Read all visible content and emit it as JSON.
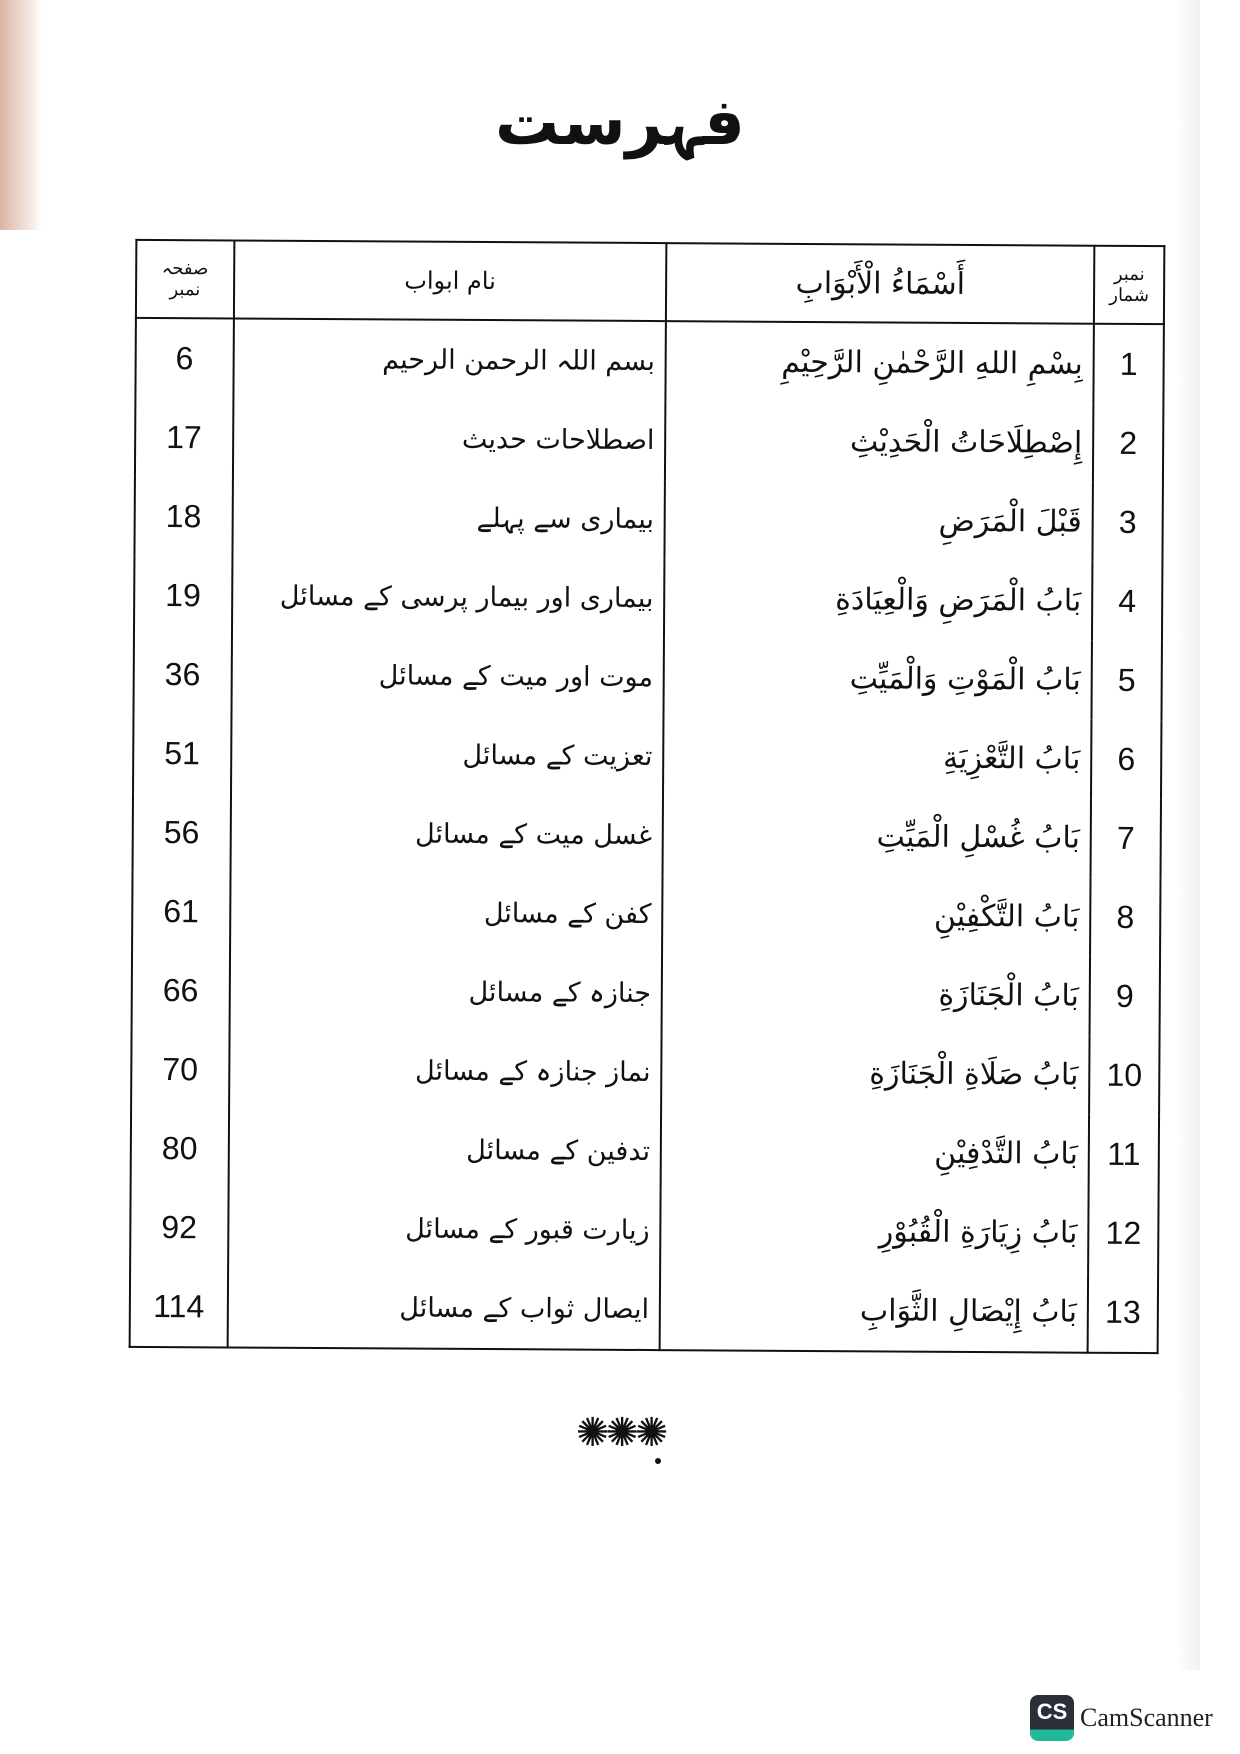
{
  "title": "فہرست",
  "table": {
    "headers": {
      "serial": "نمبر شمار",
      "arabic": "أَسْمَاءُ الْأَبْوَابِ",
      "urdu": "نام ابواب",
      "page": "صفحہ نمبر"
    },
    "rows": [
      {
        "serial": "1",
        "arabic": "بِسْمِ اللهِ الرَّحْمٰنِ الرَّحِيْمِ",
        "urdu": "بسم اللہ الرحمن الرحیم",
        "page": "6"
      },
      {
        "serial": "2",
        "arabic": "إِصْطِلَاحَاتُ الْحَدِيْثِ",
        "urdu": "اصطلاحات حدیث",
        "page": "17"
      },
      {
        "serial": "3",
        "arabic": "قَبْلَ الْمَرَضِ",
        "urdu": "بیماری سے پہلے",
        "page": "18"
      },
      {
        "serial": "4",
        "arabic": "بَابُ الْمَرَضِ وَالْعِيَادَةِ",
        "urdu": "بیماری اور بیمار پرسی کے مسائل",
        "page": "19"
      },
      {
        "serial": "5",
        "arabic": "بَابُ الْمَوْتِ وَالْمَيِّتِ",
        "urdu": "موت اور میت کے مسائل",
        "page": "36"
      },
      {
        "serial": "6",
        "arabic": "بَابُ التَّعْزِيَةِ",
        "urdu": "تعزیت کے مسائل",
        "page": "51"
      },
      {
        "serial": "7",
        "arabic": "بَابُ غُسْلِ الْمَيِّتِ",
        "urdu": "غسل میت کے مسائل",
        "page": "56"
      },
      {
        "serial": "8",
        "arabic": "بَابُ التَّكْفِيْنِ",
        "urdu": "کفن کے مسائل",
        "page": "61"
      },
      {
        "serial": "9",
        "arabic": "بَابُ الْجَنَازَةِ",
        "urdu": "جنازہ کے مسائل",
        "page": "66"
      },
      {
        "serial": "10",
        "arabic": "بَابُ صَلَاةِ الْجَنَازَةِ",
        "urdu": "نماز جنازہ کے مسائل",
        "page": "70"
      },
      {
        "serial": "11",
        "arabic": "بَابُ التَّدْفِيْنِ",
        "urdu": "تدفین کے مسائل",
        "page": "80"
      },
      {
        "serial": "12",
        "arabic": "بَابُ زِيَارَةِ الْقُبُوْرِ",
        "urdu": "زیارت قبور کے مسائل",
        "page": "92"
      },
      {
        "serial": "13",
        "arabic": "بَابُ إِيْصَالِ الثَّوَابِ",
        "urdu": "ایصال ثواب کے مسائل",
        "page": "114"
      }
    ]
  },
  "ornament": "✺✺✺",
  "watermark": {
    "logo": "CS",
    "text": "CamScanner",
    "colors": {
      "dark": "#2a2f38",
      "accent": "#22b89a"
    }
  }
}
